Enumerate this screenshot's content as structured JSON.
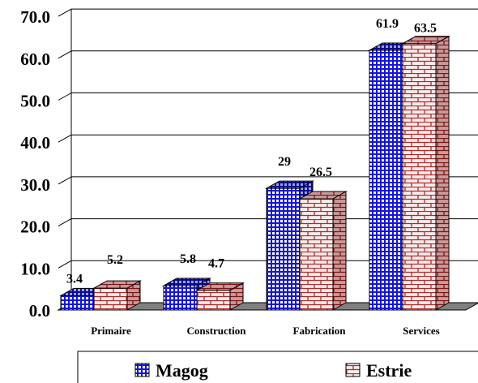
{
  "chart_data": {
    "type": "bar",
    "style": "3d-clustered",
    "categories": [
      "Primaire",
      "Construction",
      "Fabrication",
      "Services"
    ],
    "series": [
      {
        "name": "Magog",
        "values": [
          3.4,
          5.8,
          29,
          61.9
        ],
        "labels": [
          "3.4",
          "5.8",
          "29",
          "61.9"
        ],
        "color": "#1a1ae6",
        "pattern": "blue-grid"
      },
      {
        "name": "Estrie",
        "values": [
          5.2,
          4.7,
          26.5,
          63.5
        ],
        "labels": [
          "5.2",
          "4.7",
          "26.5",
          "63.5"
        ],
        "color": "#c0504d",
        "pattern": "red-brick"
      }
    ],
    "ylim": [
      0,
      70
    ],
    "yticks": [
      "0.0",
      "10.0",
      "20.0",
      "30.0",
      "40.0",
      "50.0",
      "60.0",
      "70.0"
    ],
    "grid": true,
    "legend": "bottom",
    "title": "",
    "xlabel": "",
    "ylabel": ""
  }
}
